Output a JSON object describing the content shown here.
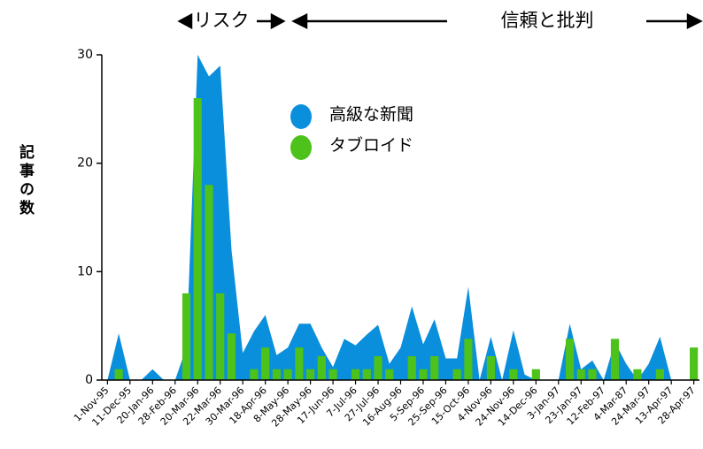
{
  "chart_data": {
    "type": "combo",
    "annotations": [
      "リスク",
      "信頼と批判"
    ],
    "y_label": "記事の数",
    "categories": [
      "1-Nov-95",
      null,
      "11-Dec-95",
      null,
      "20-Jan-96",
      null,
      "28-Feb-96",
      null,
      "20-Mar-96",
      null,
      "22-Mar-96",
      null,
      "30-Mar-96",
      null,
      "18-Apr-96",
      null,
      "8-May-96",
      null,
      "28-May-96",
      null,
      "17-Jun-96",
      null,
      "7-Jul-96",
      null,
      "27-Jul-96",
      null,
      "16-Aug-96",
      null,
      "5-Sep-96",
      null,
      "25-Sep-96",
      null,
      "15-Oct-96",
      null,
      "4-Nov-96",
      null,
      "24-Nov-96",
      null,
      "14-Dec-96",
      null,
      "3-Jan-97",
      null,
      "23-Jan-97",
      null,
      "12-Feb-97",
      null,
      "4-Mar-87",
      null,
      "24-Mar-97",
      null,
      "13-Apr-97",
      null,
      "28-Apr-97"
    ],
    "series": [
      {
        "name": "高級な新聞",
        "type": "area",
        "color": "#0a8fdc",
        "values": [
          0,
          4.3,
          0,
          0,
          1,
          0,
          0,
          3,
          30,
          28,
          29,
          12,
          2.5,
          4.5,
          6,
          2.3,
          3,
          5.2,
          5.2,
          3,
          1.2,
          3.8,
          3.2,
          4.2,
          5.1,
          1.5,
          3,
          6.8,
          3.3,
          5.6,
          2,
          2,
          8.6,
          0,
          4,
          0,
          4.6,
          0.5,
          0,
          0,
          0,
          5.2,
          1,
          1.8,
          0,
          3.5,
          1.5,
          0,
          1.5,
          4,
          0,
          0,
          0
        ]
      },
      {
        "name": "タブロイド",
        "type": "bar",
        "color": "#4cc21a",
        "values": [
          0,
          1,
          0,
          0,
          0,
          0,
          0,
          8,
          26,
          18,
          8,
          4.3,
          0,
          1,
          3,
          1,
          1,
          3,
          1,
          2.2,
          1,
          0,
          1,
          1,
          2.2,
          1,
          0,
          2.2,
          1,
          2.2,
          0,
          1,
          3.8,
          0,
          2.2,
          0,
          1,
          0,
          1,
          0,
          0,
          3.8,
          1,
          1,
          0,
          3.8,
          0,
          1,
          0,
          1,
          0,
          0,
          3
        ]
      }
    ],
    "ylim": [
      0,
      30
    ],
    "yticks": [
      0,
      10,
      20,
      30
    ],
    "legend_position": "top"
  }
}
